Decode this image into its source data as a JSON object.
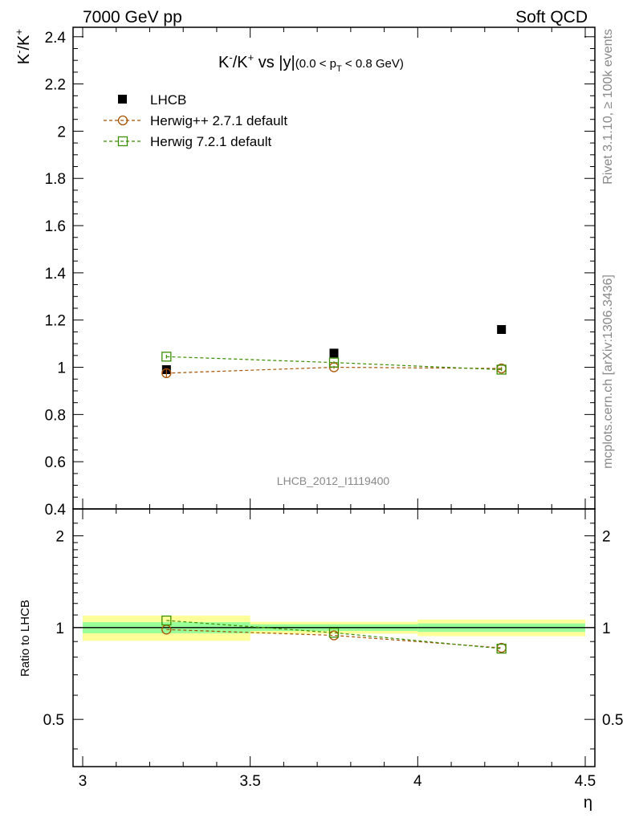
{
  "header": {
    "left": "7000 GeV pp",
    "right": "Soft QCD"
  },
  "side_text": {
    "rivet": "Rivet 3.1.10, ≥ 100k events",
    "mcplots": "mcplots.cern.ch [arXiv:1306.3436]"
  },
  "watermark": "LHCB_2012_I1119400",
  "colors": {
    "data": "#000000",
    "herwigpp": "#a65200",
    "herwig7": "#3a8f00",
    "band_inner": "#99ff99",
    "band_outer": "#ffff99"
  },
  "chart_data": [
    {
      "type": "scatter",
      "title": {
        "k1": "K",
        "sup1": "-",
        "slash": "/K",
        "sup2": "+",
        "vs": " vs |y|",
        "range_open": "(0.0 < p",
        "range_sub": "T",
        "range_close": " < 0.8 GeV)"
      },
      "ylabel": {
        "k1": "K",
        "sup1": "-",
        "slash": "/K",
        "sup2": "+"
      },
      "xlim": [
        3.0,
        4.5
      ],
      "ylim": [
        0.4,
        2.44
      ],
      "yticks": [
        "0.4",
        "0.6",
        "0.8",
        "1",
        "1.2",
        "1.4",
        "1.6",
        "1.8",
        "2",
        "2.2",
        "2.4"
      ],
      "grid": false,
      "legend_position": "top-left",
      "series": [
        {
          "name": "LHCB",
          "style": "data",
          "x": [
            3.25,
            3.75,
            4.25
          ],
          "xerr": [
            0.25,
            0.25,
            0.25
          ],
          "y": [
            0.99,
            1.06,
            1.16
          ],
          "yerr": [
            0.012,
            0.012,
            0.012
          ]
        },
        {
          "name": "Herwig++ 2.7.1 default",
          "style": "circle",
          "x": [
            3.25,
            3.75,
            4.25
          ],
          "y": [
            0.975,
            1.0,
            0.995
          ],
          "yerr": [
            0.017,
            0.006,
            0.006
          ]
        },
        {
          "name": "Herwig 7.2.1 default",
          "style": "square",
          "x": [
            3.25,
            3.75,
            4.25
          ],
          "y": [
            1.045,
            1.02,
            0.99
          ],
          "yerr": [
            0.008,
            0.006,
            0.006
          ]
        }
      ]
    },
    {
      "type": "scatter",
      "ylabel": "Ratio to LHCB",
      "xlabel": "η",
      "xlim": [
        3.0,
        4.5
      ],
      "ylim": [
        0.35,
        2.45
      ],
      "yticks": [
        "0.5",
        "1",
        "2"
      ],
      "xticks": [
        "3",
        "3.5",
        "4",
        "4.5"
      ],
      "bands": [
        {
          "x": [
            3.0,
            3.5
          ],
          "inner": [
            0.958,
            1.042
          ],
          "outer": [
            0.905,
            1.095
          ]
        },
        {
          "x": [
            3.5,
            4.0
          ],
          "inner": [
            0.975,
            1.025
          ],
          "outer": [
            0.955,
            1.045
          ]
        },
        {
          "x": [
            4.0,
            4.5
          ],
          "inner": [
            0.968,
            1.032
          ],
          "outer": [
            0.937,
            1.063
          ]
        }
      ],
      "series": [
        {
          "name": "Herwig++ 2.7.1 default",
          "style": "circle",
          "x": [
            3.25,
            3.75,
            4.25
          ],
          "y": [
            0.985,
            0.943,
            0.858
          ]
        },
        {
          "name": "Herwig 7.2.1 default",
          "style": "square",
          "x": [
            3.25,
            3.75,
            4.25
          ],
          "y": [
            1.055,
            0.962,
            0.853
          ]
        }
      ]
    }
  ]
}
